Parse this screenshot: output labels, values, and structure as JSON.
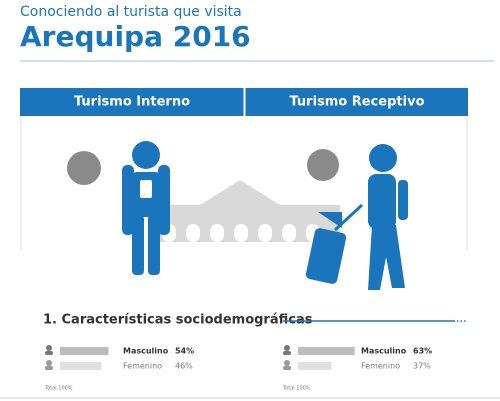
{
  "header": {
    "subtitle": "Conociendo al turista que visita",
    "title": "Arequipa 2016"
  },
  "tabs": [
    "Turismo Interno",
    "Turismo Receptivo"
  ],
  "section": {
    "title": "1. Características sociodemográficas"
  },
  "panels": [
    {
      "rows": [
        {
          "label": "Masculino",
          "value": 54,
          "value_label": "54%"
        },
        {
          "label": "Femenino",
          "value": 46,
          "value_label": "46%"
        }
      ],
      "total": "Total 100%"
    },
    {
      "rows": [
        {
          "label": "Masculino",
          "value": 63,
          "value_label": "63%"
        },
        {
          "label": "Femenino",
          "value": 37,
          "value_label": "37%"
        }
      ],
      "total": "Total 100%"
    }
  ]
}
